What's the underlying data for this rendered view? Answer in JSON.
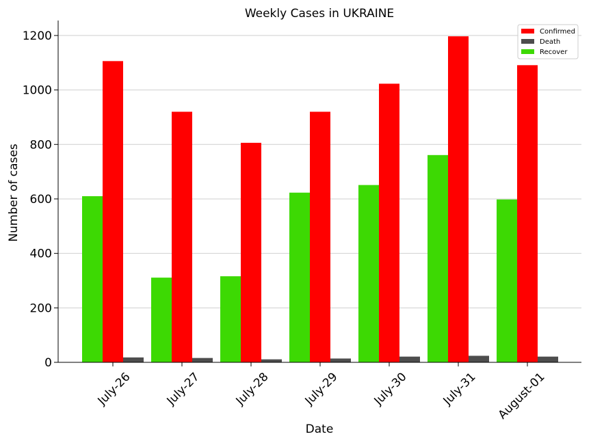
{
  "chart_data": {
    "type": "bar",
    "title": "Weekly Cases in UKRAINE",
    "xlabel": "Date",
    "ylabel": "Number of cases",
    "categories": [
      "July-26",
      "July-27",
      "July-28",
      "July-29",
      "July-30",
      "July-31",
      "August-01"
    ],
    "ylim": [
      0,
      1255
    ],
    "yticks": [
      0,
      200,
      400,
      600,
      800,
      1000,
      1200
    ],
    "grid": "horizontal",
    "legend_position": "top-right",
    "bar_order": [
      "Recover",
      "Confirmed",
      "Death"
    ],
    "series": [
      {
        "name": "Confirmed",
        "color": "#ff0000",
        "values": [
          1106,
          920,
          806,
          920,
          1023,
          1197,
          1091
        ]
      },
      {
        "name": "Death",
        "color": "#4d4d4d",
        "values": [
          18,
          16,
          11,
          14,
          21,
          24,
          21
        ]
      },
      {
        "name": "Recover",
        "color": "#3dd903",
        "values": [
          610,
          311,
          316,
          623,
          651,
          761,
          598
        ]
      }
    ]
  }
}
